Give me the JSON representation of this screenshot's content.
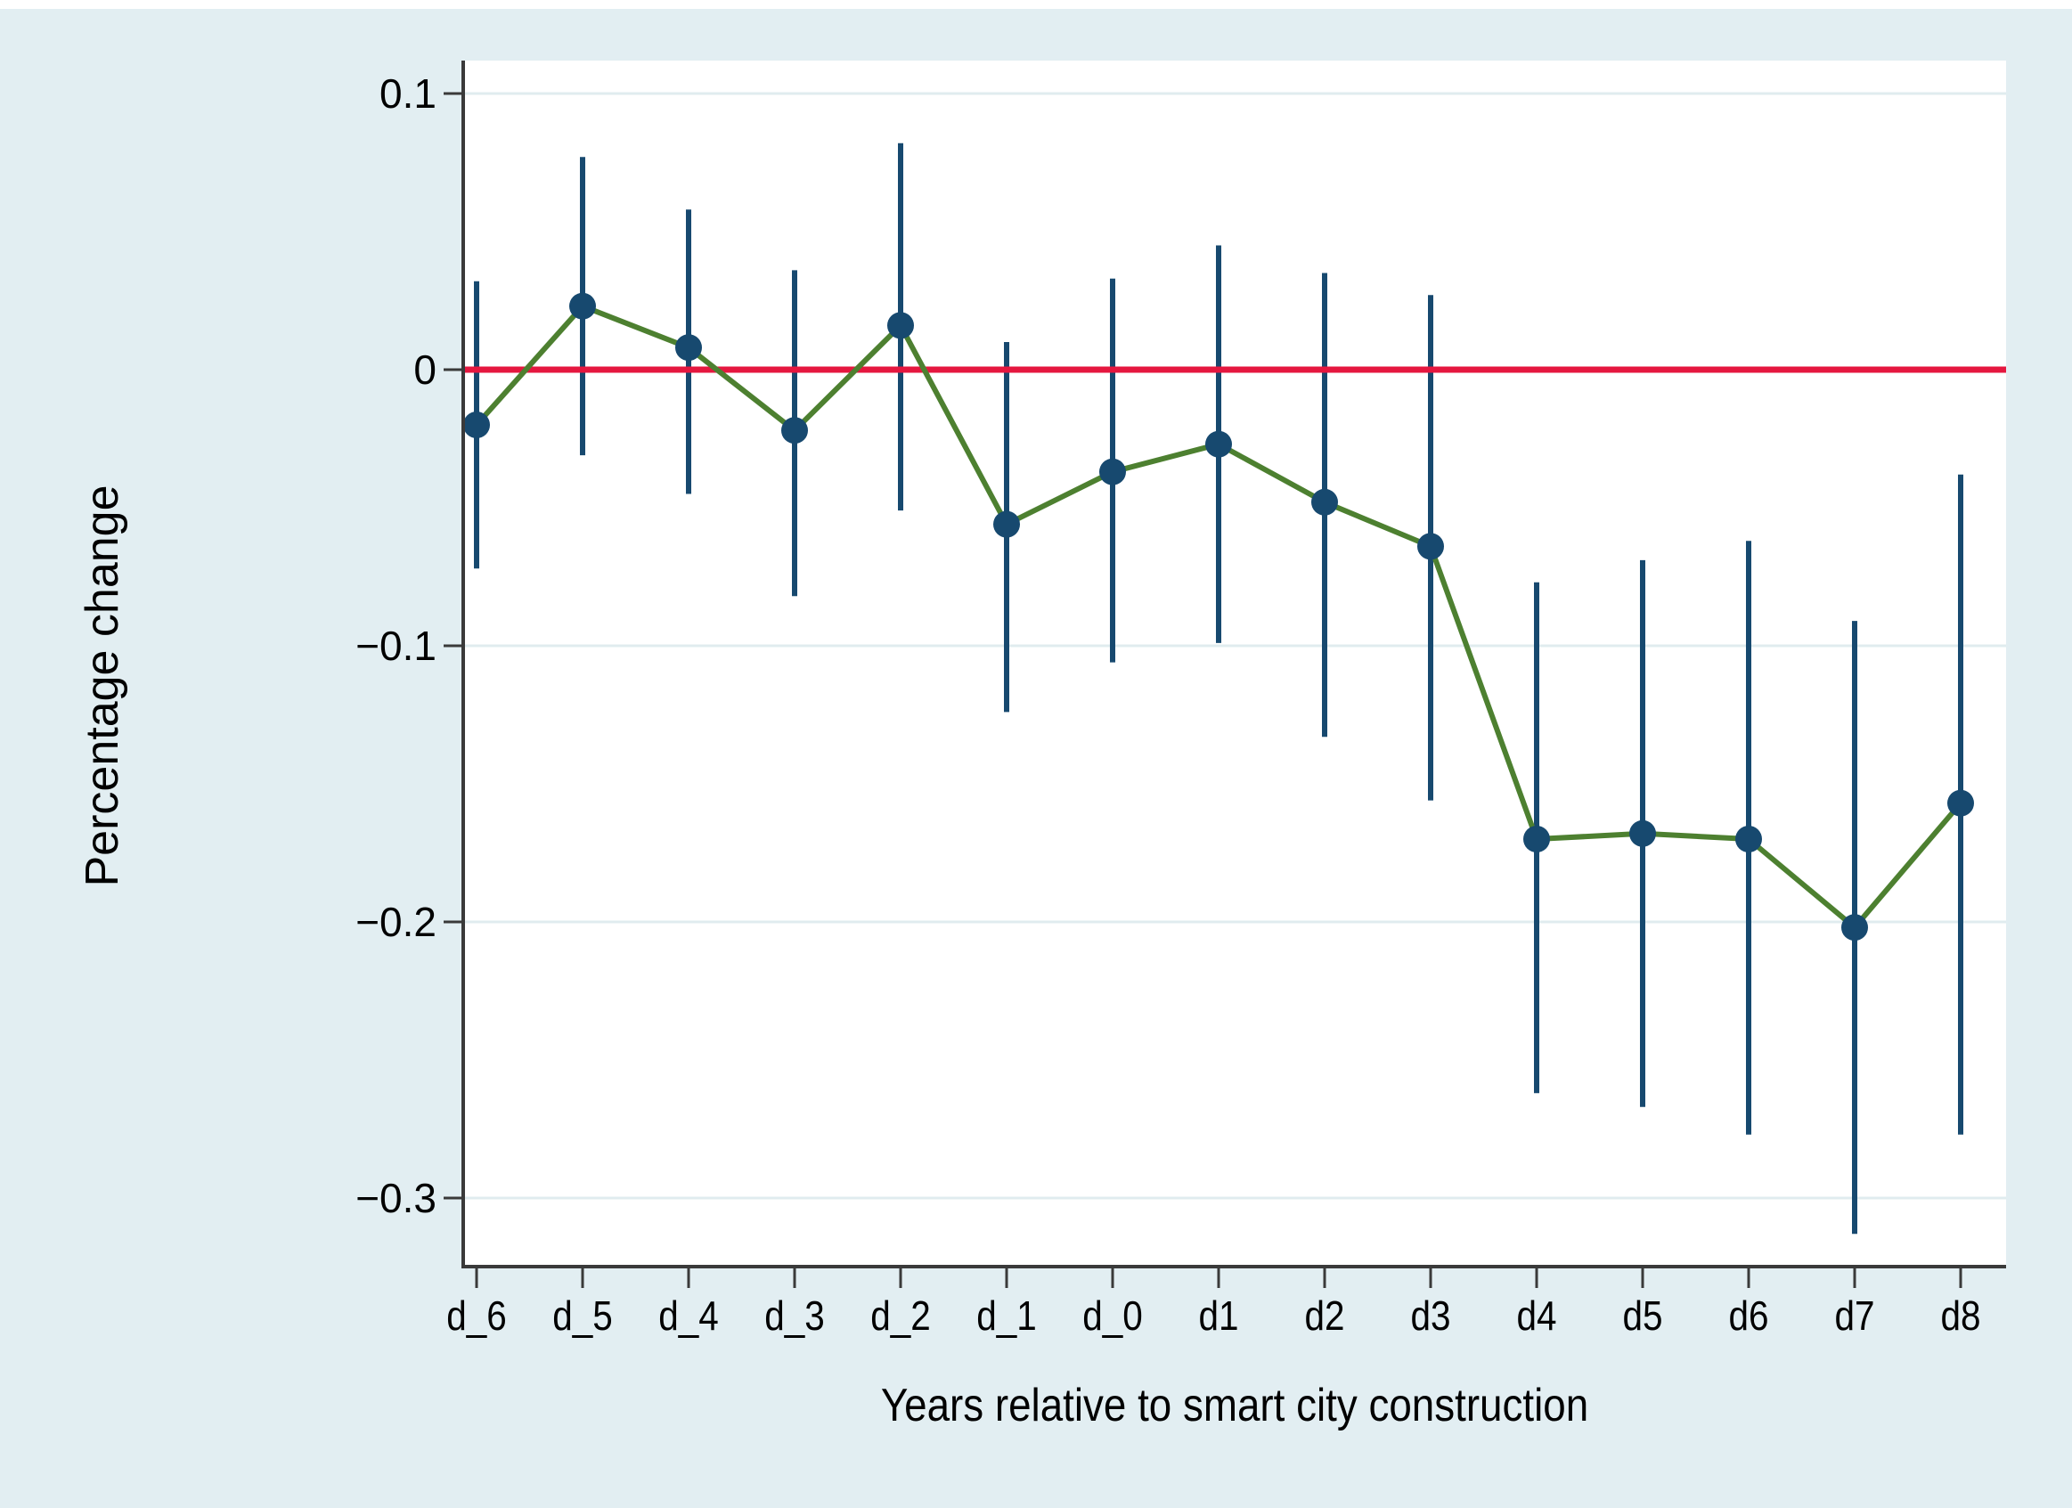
{
  "chart_data": {
    "type": "line",
    "subtype": "event-study point estimates with 95% confidence intervals and zero reference line",
    "title": "",
    "xlabel": "Years relative to smart city construction",
    "ylabel": "Percentage change",
    "categories": [
      "d_6",
      "d_5",
      "d_4",
      "d_3",
      "d_2",
      "d_1",
      "d_0",
      "d1",
      "d2",
      "d3",
      "d4",
      "d5",
      "d6",
      "d7",
      "d8"
    ],
    "series": [
      {
        "name": "point_estimate",
        "values": [
          -0.02,
          0.023,
          0.008,
          -0.022,
          0.016,
          -0.056,
          -0.037,
          -0.027,
          -0.048,
          -0.064,
          -0.17,
          -0.168,
          -0.17,
          -0.202,
          -0.157
        ]
      },
      {
        "name": "ci_lower",
        "values": [
          -0.072,
          -0.031,
          -0.045,
          -0.082,
          -0.051,
          -0.124,
          -0.106,
          -0.099,
          -0.133,
          -0.156,
          -0.262,
          -0.267,
          -0.277,
          -0.313,
          -0.277
        ]
      },
      {
        "name": "ci_upper",
        "values": [
          0.032,
          0.077,
          0.058,
          0.036,
          0.082,
          0.01,
          0.033,
          0.045,
          0.035,
          0.027,
          -0.077,
          -0.069,
          -0.062,
          -0.091,
          -0.038
        ]
      }
    ],
    "zero_reference_line": 0,
    "y_ticks": [
      0.1,
      0,
      -0.1,
      -0.2,
      -0.3
    ],
    "y_tick_labels": [
      "0.1",
      "0",
      "−0.1",
      "−0.2",
      "−0.3"
    ],
    "ylim": [
      -0.325,
      0.112
    ],
    "grid": "horizontal",
    "legend": "none"
  },
  "colors": {
    "canvas_background": "#e2eef2",
    "plot_background": "#ffffff",
    "gridline": "#e0ecef",
    "axis_line": "#3a3a3a",
    "tick": "#3a3a3a",
    "label_text": "#000000",
    "ci_bar": "#17496f",
    "marker": "#17496f",
    "trend_line": "#4d8030",
    "zero_line": "#e5173f"
  }
}
